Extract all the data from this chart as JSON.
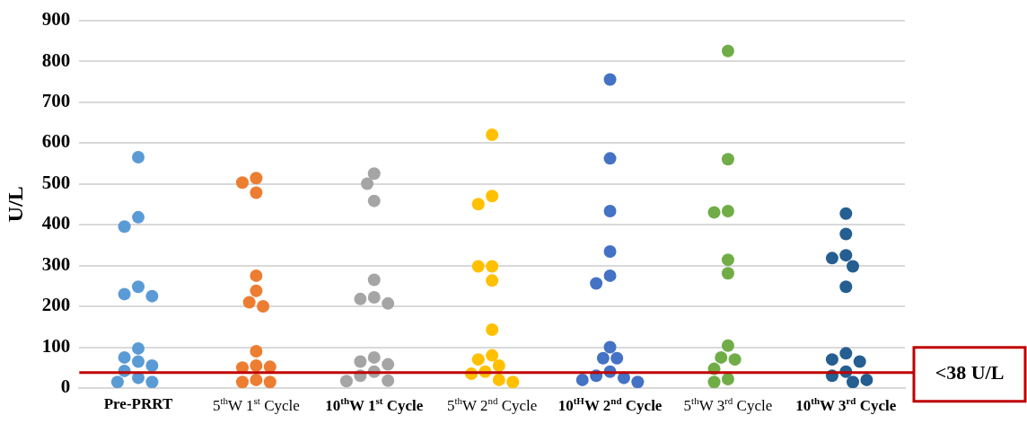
{
  "chart_data": {
    "type": "scatter",
    "ylabel": "U/L",
    "categories": [
      "Pre-PRRT",
      "5$^{th}$W 1$^{st}$ Cycle",
      "10$^{th}$W 1$^{st}$ Cycle",
      "5$^{th}$W 2$^{nd}$ Cycle",
      "10$^{tH}$W 2$^{nd}$ Cycle",
      "5$^{th}$W 3$^{rd}$ Cycle",
      "10$^{th}$W 3$^{rd}$ Cycle"
    ],
    "series": [
      {
        "color": "#5b9bd5",
        "x": [
          "Pre-PRRT",
          "Pre-PRRT",
          "Pre-PRRT",
          "Pre-PRRT",
          "Pre-PRRT",
          "Pre-PRRT",
          "Pre-PRRT",
          "Pre-PRRT",
          "Pre-PRRT",
          "Pre-PRRT",
          "Pre-PRRT",
          "Pre-PRRT",
          "Pre-PRRT",
          "Pre-PRRT"
        ],
        "values": [
          565,
          418,
          395,
          248,
          230,
          225,
          97,
          75,
          65,
          55,
          42,
          25,
          15,
          15
        ]
      },
      {
        "color": "#ed7d31",
        "x": [
          "5$^{th}$W 1$^{st}$ Cycle",
          "5$^{th}$W 1$^{st}$ Cycle",
          "5$^{th}$W 1$^{st}$ Cycle",
          "5$^{th}$W 1$^{st}$ Cycle",
          "5$^{th}$W 1$^{st}$ Cycle",
          "5$^{th}$W 1$^{st}$ Cycle",
          "5$^{th}$W 1$^{st}$ Cycle",
          "5$^{th}$W 1$^{st}$ Cycle",
          "5$^{th}$W 1$^{st}$ Cycle",
          "5$^{th}$W 1$^{st}$ Cycle",
          "5$^{th}$W 1$^{st}$ Cycle",
          "5$^{th}$W 1$^{st}$ Cycle",
          "5$^{th}$W 1$^{st}$ Cycle",
          "5$^{th}$W 1$^{st}$ Cycle"
        ],
        "values": [
          514,
          503,
          478,
          275,
          238,
          210,
          200,
          90,
          55,
          50,
          52,
          20,
          15,
          15
        ]
      },
      {
        "color": "#a5a5a5",
        "x": [
          "10$^{th}$W 1$^{st}$ Cycle",
          "10$^{th}$W 1$^{st}$ Cycle",
          "10$^{th}$W 1$^{st}$ Cycle",
          "10$^{th}$W 1$^{st}$ Cycle",
          "10$^{th}$W 1$^{st}$ Cycle",
          "10$^{th}$W 1$^{st}$ Cycle",
          "10$^{th}$W 1$^{st}$ Cycle",
          "10$^{th}$W 1$^{st}$ Cycle",
          "10$^{th}$W 1$^{st}$ Cycle",
          "10$^{th}$W 1$^{st}$ Cycle",
          "10$^{th}$W 1$^{st}$ Cycle",
          "10$^{th}$W 1$^{st}$ Cycle",
          "10$^{th}$W 1$^{st}$ Cycle",
          "10$^{th}$W 1$^{st}$ Cycle"
        ],
        "values": [
          525,
          500,
          458,
          265,
          222,
          218,
          207,
          75,
          65,
          58,
          40,
          30,
          18,
          17
        ]
      },
      {
        "color": "#ffc000",
        "x": [
          "5$^{th}$W 2$^{nd}$ Cycle",
          "5$^{th}$W 2$^{nd}$ Cycle",
          "5$^{th}$W 2$^{nd}$ Cycle",
          "5$^{th}$W 2$^{nd}$ Cycle",
          "5$^{th}$W 2$^{nd}$ Cycle",
          "5$^{th}$W 2$^{nd}$ Cycle",
          "5$^{th}$W 2$^{nd}$ Cycle",
          "5$^{th}$W 2$^{nd}$ Cycle",
          "5$^{th}$W 2$^{nd}$ Cycle",
          "5$^{th}$W 2$^{nd}$ Cycle",
          "5$^{th}$W 2$^{nd}$ Cycle",
          "5$^{th}$W 2$^{nd}$ Cycle",
          "5$^{th}$W 2$^{nd}$ Cycle",
          "5$^{th}$W 2$^{nd}$ Cycle"
        ],
        "values": [
          620,
          470,
          450,
          298,
          298,
          263,
          143,
          80,
          70,
          55,
          40,
          35,
          20,
          15
        ]
      },
      {
        "color": "#4472c4",
        "x": [
          "10$^{tH}$W 2$^{nd}$ Cycle",
          "10$^{tH}$W 2$^{nd}$ Cycle",
          "10$^{tH}$W 2$^{nd}$ Cycle",
          "10$^{tH}$W 2$^{nd}$ Cycle",
          "10$^{tH}$W 2$^{nd}$ Cycle",
          "10$^{tH}$W 2$^{nd}$ Cycle",
          "10$^{tH}$W 2$^{nd}$ Cycle",
          "10$^{tH}$W 2$^{nd}$ Cycle",
          "10$^{tH}$W 2$^{nd}$ Cycle",
          "10$^{tH}$W 2$^{nd}$ Cycle",
          "10$^{tH}$W 2$^{nd}$ Cycle",
          "10$^{tH}$W 2$^{nd}$ Cycle",
          "10$^{tH}$W 2$^{nd}$ Cycle",
          "10$^{tH}$W 2$^{nd}$ Cycle"
        ],
        "values": [
          755,
          562,
          433,
          334,
          275,
          256,
          100,
          73,
          73,
          40,
          30,
          25,
          20,
          15
        ]
      },
      {
        "color": "#70ad47",
        "x": [
          "5$^{th}$W 3$^{rd}$ Cycle",
          "5$^{th}$W 3$^{rd}$ Cycle",
          "5$^{th}$W 3$^{rd}$ Cycle",
          "5$^{th}$W 3$^{rd}$ Cycle",
          "5$^{th}$W 3$^{rd}$ Cycle",
          "5$^{th}$W 3$^{rd}$ Cycle",
          "5$^{th}$W 3$^{rd}$ Cycle",
          "5$^{th}$W 3$^{rd}$ Cycle",
          "5$^{th}$W 3$^{rd}$ Cycle",
          "5$^{th}$W 3$^{rd}$ Cycle",
          "5$^{th}$W 3$^{rd}$ Cycle",
          "5$^{th}$W 3$^{rd}$ Cycle"
        ],
        "values": [
          825,
          560,
          433,
          430,
          314,
          281,
          104,
          75,
          70,
          47,
          22,
          15
        ]
      },
      {
        "color": "#255e91",
        "x": [
          "10$^{th}$W 3$^{rd}$ Cycle",
          "10$^{th}$W 3$^{rd}$ Cycle",
          "10$^{th}$W 3$^{rd}$ Cycle",
          "10$^{th}$W 3$^{rd}$ Cycle",
          "10$^{th}$W 3$^{rd}$ Cycle",
          "10$^{th}$W 3$^{rd}$ Cycle",
          "10$^{th}$W 3$^{rd}$ Cycle",
          "10$^{th}$W 3$^{rd}$ Cycle",
          "10$^{th}$W 3$^{rd}$ Cycle",
          "10$^{th}$W 3$^{rd}$ Cycle",
          "10$^{th}$W 3$^{rd}$ Cycle",
          "10$^{th}$W 3$^{rd}$ Cycle",
          "10$^{th}$W 3$^{rd}$ Cycle"
        ],
        "values": [
          427,
          377,
          325,
          318,
          298,
          248,
          85,
          70,
          65,
          40,
          30,
          15,
          20
        ]
      }
    ],
    "ylim": [
      0,
      900
    ],
    "yticks": [
      0,
      100,
      200,
      300,
      400,
      500,
      600,
      700,
      800,
      900
    ],
    "grid": "y",
    "legend": false,
    "marker": "circle",
    "ref_lines": [
      {
        "axis": "y",
        "value": 38,
        "label": "<38 U/L",
        "color": "#c00000"
      }
    ]
  }
}
